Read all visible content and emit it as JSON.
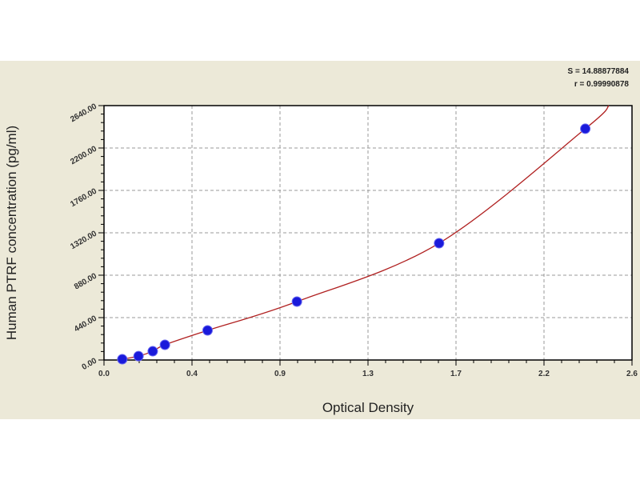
{
  "chart_data": {
    "type": "scatter",
    "title": "",
    "xlabel": "Optical Density",
    "ylabel": "Human PTRF concentration (pg/ml)",
    "xlim": [
      0.0,
      2.6
    ],
    "ylim": [
      0,
      2640
    ],
    "x_tick_labels": [
      "0.0",
      "0.4",
      "0.9",
      "1.3",
      "1.7",
      "2.2",
      "2.6"
    ],
    "y_tick_labels": [
      "0.00",
      "440.00",
      "880.00",
      "1320.00",
      "1760.00",
      "2200.00",
      "2640.00"
    ],
    "grid": true,
    "stats": [
      "S = 14.88877884",
      "r = 0.99990878"
    ],
    "points": [
      {
        "x": 0.09,
        "y": 8
      },
      {
        "x": 0.17,
        "y": 40
      },
      {
        "x": 0.24,
        "y": 91
      },
      {
        "x": 0.3,
        "y": 158
      },
      {
        "x": 0.51,
        "y": 307
      },
      {
        "x": 0.95,
        "y": 606
      },
      {
        "x": 1.65,
        "y": 1212
      },
      {
        "x": 2.37,
        "y": 2400
      }
    ],
    "colors": {
      "points": "#1a1adb",
      "curve": "#b02020",
      "plot_bg": "#ffffff",
      "panel_bg": "#ece9d8"
    }
  }
}
